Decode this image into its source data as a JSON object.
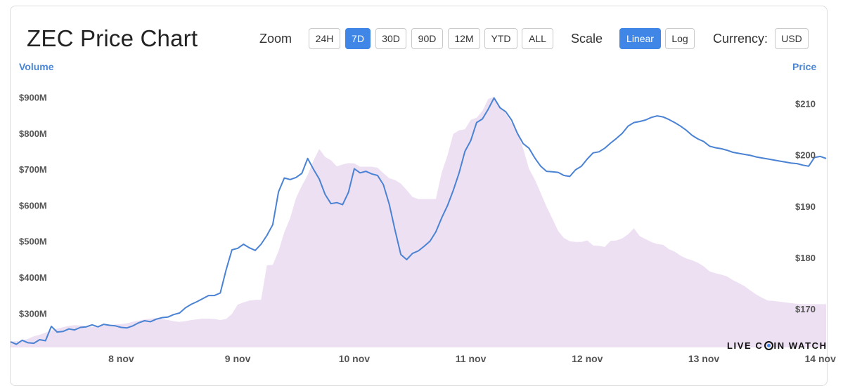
{
  "header": {
    "title": "ZEC Price Chart",
    "zoom_label": "Zoom",
    "zoom_options": [
      "24H",
      "7D",
      "30D",
      "90D",
      "12M",
      "YTD",
      "ALL"
    ],
    "zoom_selected": "7D",
    "scale_label": "Scale",
    "scale_options": [
      "Linear",
      "Log"
    ],
    "scale_selected": "Linear",
    "currency_label": "Currency:",
    "currency_value": "USD"
  },
  "watermark": {
    "before": "LIVE C",
    "after": "IN WATCH"
  },
  "colors": {
    "price_line": "#4a82d4",
    "volume_fill": "#ede0f2",
    "accent": "#3f86e6",
    "axis_title": "#4a86d4"
  },
  "chart_data": {
    "type": "line",
    "title": "ZEC Price Chart",
    "x_axis": {
      "ticks": [
        "8 nov",
        "9 nov",
        "10 nov",
        "11 nov",
        "12 nov",
        "13 nov",
        "14 nov"
      ],
      "range_days": [
        7.55,
        14.55
      ]
    },
    "left_axis": {
      "label": "Volume",
      "ticks": [
        300,
        400,
        500,
        600,
        700,
        800,
        900
      ],
      "tick_labels": [
        "$300M",
        "$400M",
        "$500M",
        "$600M",
        "$700M",
        "$800M",
        "$900M"
      ],
      "unit": "USD millions",
      "range": [
        205,
        975
      ]
    },
    "right_axis": {
      "label": "Price",
      "ticks": [
        170,
        180,
        190,
        200,
        210
      ],
      "tick_labels": [
        "$170",
        "$180",
        "$190",
        "$200",
        "$210"
      ],
      "unit": "USD",
      "range": [
        162.5,
        216.5
      ]
    },
    "series": [
      {
        "name": "Price",
        "axis": "right",
        "points": [
          [
            7.55,
            163.6
          ],
          [
            7.6,
            163.1
          ],
          [
            7.65,
            163.9
          ],
          [
            7.7,
            163.4
          ],
          [
            7.75,
            163.3
          ],
          [
            7.8,
            164.0
          ],
          [
            7.85,
            163.8
          ],
          [
            7.9,
            166.6
          ],
          [
            7.95,
            165.5
          ],
          [
            8.0,
            165.6
          ],
          [
            8.05,
            166.1
          ],
          [
            8.1,
            165.9
          ],
          [
            8.15,
            166.4
          ],
          [
            8.2,
            166.5
          ],
          [
            8.25,
            166.9
          ],
          [
            8.3,
            166.5
          ],
          [
            8.35,
            167.0
          ],
          [
            8.4,
            166.8
          ],
          [
            8.45,
            166.7
          ],
          [
            8.5,
            166.4
          ],
          [
            8.55,
            166.3
          ],
          [
            8.6,
            166.7
          ],
          [
            8.65,
            167.3
          ],
          [
            8.7,
            167.7
          ],
          [
            8.75,
            167.5
          ],
          [
            8.8,
            168.0
          ],
          [
            8.85,
            168.3
          ],
          [
            8.9,
            168.4
          ],
          [
            8.95,
            168.9
          ],
          [
            9.0,
            169.2
          ],
          [
            9.05,
            170.2
          ],
          [
            9.1,
            170.9
          ],
          [
            9.15,
            171.4
          ],
          [
            9.2,
            172.0
          ],
          [
            9.25,
            172.6
          ],
          [
            9.3,
            172.6
          ],
          [
            9.35,
            173.1
          ],
          [
            9.4,
            177.6
          ],
          [
            9.45,
            181.5
          ],
          [
            9.5,
            181.8
          ],
          [
            9.55,
            182.6
          ],
          [
            9.6,
            181.9
          ],
          [
            9.65,
            181.4
          ],
          [
            9.7,
            182.6
          ],
          [
            9.75,
            184.3
          ],
          [
            9.8,
            186.4
          ],
          [
            9.85,
            192.8
          ],
          [
            9.9,
            195.5
          ],
          [
            9.95,
            195.2
          ],
          [
            10.0,
            195.6
          ],
          [
            10.05,
            196.4
          ],
          [
            10.1,
            199.3
          ],
          [
            10.15,
            197.2
          ],
          [
            10.2,
            195.3
          ],
          [
            10.25,
            192.3
          ],
          [
            10.3,
            190.5
          ],
          [
            10.35,
            190.7
          ],
          [
            10.4,
            190.3
          ],
          [
            10.45,
            192.7
          ],
          [
            10.5,
            197.3
          ],
          [
            10.55,
            196.5
          ],
          [
            10.6,
            196.8
          ],
          [
            10.65,
            196.3
          ],
          [
            10.7,
            196.0
          ],
          [
            10.75,
            194.2
          ],
          [
            10.8,
            190.4
          ],
          [
            10.85,
            185.3
          ],
          [
            10.9,
            180.6
          ],
          [
            10.95,
            179.6
          ],
          [
            11.0,
            180.8
          ],
          [
            11.05,
            181.3
          ],
          [
            11.1,
            182.2
          ],
          [
            11.15,
            183.2
          ],
          [
            11.2,
            185.0
          ],
          [
            11.25,
            187.7
          ],
          [
            11.3,
            190.1
          ],
          [
            11.35,
            193.1
          ],
          [
            11.4,
            196.5
          ],
          [
            11.45,
            200.7
          ],
          [
            11.5,
            202.8
          ],
          [
            11.55,
            206.3
          ],
          [
            11.6,
            207.0
          ],
          [
            11.65,
            208.9
          ],
          [
            11.7,
            211.1
          ],
          [
            11.75,
            209.2
          ],
          [
            11.8,
            208.4
          ],
          [
            11.85,
            206.8
          ],
          [
            11.9,
            204.2
          ],
          [
            11.95,
            202.2
          ],
          [
            12.0,
            201.3
          ],
          [
            12.05,
            199.4
          ],
          [
            12.1,
            197.8
          ],
          [
            12.15,
            196.8
          ],
          [
            12.2,
            196.7
          ],
          [
            12.25,
            196.6
          ],
          [
            12.3,
            196.0
          ],
          [
            12.35,
            195.8
          ],
          [
            12.4,
            197.1
          ],
          [
            12.45,
            197.8
          ],
          [
            12.5,
            199.2
          ],
          [
            12.55,
            200.4
          ],
          [
            12.6,
            200.6
          ],
          [
            12.65,
            201.3
          ],
          [
            12.7,
            202.3
          ],
          [
            12.75,
            203.2
          ],
          [
            12.8,
            204.2
          ],
          [
            12.85,
            205.6
          ],
          [
            12.9,
            206.3
          ],
          [
            12.95,
            206.5
          ],
          [
            13.0,
            206.8
          ],
          [
            13.05,
            207.3
          ],
          [
            13.1,
            207.6
          ],
          [
            13.15,
            207.4
          ],
          [
            13.2,
            206.9
          ],
          [
            13.25,
            206.3
          ],
          [
            13.3,
            205.6
          ],
          [
            13.35,
            204.8
          ],
          [
            13.4,
            203.8
          ],
          [
            13.45,
            203.1
          ],
          [
            13.5,
            202.6
          ],
          [
            13.55,
            201.7
          ],
          [
            13.6,
            201.4
          ],
          [
            13.65,
            201.2
          ],
          [
            13.7,
            200.9
          ],
          [
            13.75,
            200.5
          ],
          [
            13.8,
            200.3
          ],
          [
            13.85,
            200.1
          ],
          [
            13.9,
            199.9
          ],
          [
            13.95,
            199.6
          ],
          [
            14.0,
            199.4
          ],
          [
            14.05,
            199.2
          ],
          [
            14.1,
            199.0
          ],
          [
            14.15,
            198.8
          ],
          [
            14.2,
            198.6
          ],
          [
            14.25,
            198.4
          ],
          [
            14.3,
            198.3
          ],
          [
            14.35,
            198.0
          ],
          [
            14.4,
            197.8
          ],
          [
            14.45,
            199.5
          ],
          [
            14.5,
            199.7
          ],
          [
            14.55,
            199.3
          ]
        ]
      },
      {
        "name": "Volume",
        "axis": "left",
        "points": [
          [
            7.55,
            222
          ],
          [
            7.6,
            222
          ],
          [
            7.65,
            224
          ],
          [
            7.7,
            229
          ],
          [
            7.75,
            236
          ],
          [
            7.8,
            240
          ],
          [
            7.85,
            246
          ],
          [
            7.9,
            252
          ],
          [
            7.95,
            257
          ],
          [
            8.0,
            261
          ],
          [
            8.05,
            265
          ],
          [
            8.1,
            267
          ],
          [
            8.15,
            266
          ],
          [
            8.2,
            264
          ],
          [
            8.25,
            262
          ],
          [
            8.3,
            264
          ],
          [
            8.35,
            266
          ],
          [
            8.4,
            267
          ],
          [
            8.45,
            269
          ],
          [
            8.5,
            270
          ],
          [
            8.55,
            272
          ],
          [
            8.6,
            276
          ],
          [
            8.65,
            279
          ],
          [
            8.7,
            283
          ],
          [
            8.75,
            285
          ],
          [
            8.8,
            286
          ],
          [
            8.85,
            284
          ],
          [
            8.9,
            281
          ],
          [
            8.95,
            278
          ],
          [
            9.0,
            276
          ],
          [
            9.05,
            278
          ],
          [
            9.1,
            281
          ],
          [
            9.15,
            283
          ],
          [
            9.2,
            285
          ],
          [
            9.25,
            285
          ],
          [
            9.3,
            284
          ],
          [
            9.35,
            281
          ],
          [
            9.4,
            284
          ],
          [
            9.45,
            298
          ],
          [
            9.5,
            324
          ],
          [
            9.55,
            330
          ],
          [
            9.6,
            335
          ],
          [
            9.65,
            337
          ],
          [
            9.7,
            337
          ],
          [
            9.75,
            433
          ],
          [
            9.8,
            434
          ],
          [
            9.85,
            472
          ],
          [
            9.9,
            525
          ],
          [
            9.95,
            564
          ],
          [
            10.0,
            620
          ],
          [
            10.05,
            654
          ],
          [
            10.1,
            684
          ],
          [
            10.15,
            724
          ],
          [
            10.2,
            756
          ],
          [
            10.25,
            734
          ],
          [
            10.3,
            725
          ],
          [
            10.35,
            708
          ],
          [
            10.4,
            713
          ],
          [
            10.45,
            717
          ],
          [
            10.5,
            716
          ],
          [
            10.55,
            707
          ],
          [
            10.6,
            707
          ],
          [
            10.65,
            707
          ],
          [
            10.7,
            704
          ],
          [
            10.75,
            689
          ],
          [
            10.8,
            675
          ],
          [
            10.85,
            670
          ],
          [
            10.9,
            660
          ],
          [
            10.95,
            642
          ],
          [
            11.0,
            623
          ],
          [
            11.05,
            617
          ],
          [
            11.1,
            617
          ],
          [
            11.15,
            617
          ],
          [
            11.2,
            617
          ],
          [
            11.25,
            690
          ],
          [
            11.3,
            738
          ],
          [
            11.35,
            798
          ],
          [
            11.4,
            808
          ],
          [
            11.45,
            811
          ],
          [
            11.5,
            837
          ],
          [
            11.55,
            843
          ],
          [
            11.6,
            862
          ],
          [
            11.65,
            895
          ],
          [
            11.7,
            901
          ],
          [
            11.75,
            877
          ],
          [
            11.8,
            854
          ],
          [
            11.85,
            830
          ],
          [
            11.9,
            802
          ],
          [
            11.95,
            757
          ],
          [
            12.0,
            701
          ],
          [
            12.05,
            671
          ],
          [
            12.1,
            634
          ],
          [
            12.15,
            596
          ],
          [
            12.2,
            563
          ],
          [
            12.25,
            528
          ],
          [
            12.3,
            509
          ],
          [
            12.35,
            500
          ],
          [
            12.4,
            498
          ],
          [
            12.45,
            498
          ],
          [
            12.5,
            502
          ],
          [
            12.55,
            488
          ],
          [
            12.6,
            487
          ],
          [
            12.65,
            484
          ],
          [
            12.7,
            501
          ],
          [
            12.75,
            502
          ],
          [
            12.8,
            508
          ],
          [
            12.85,
            519
          ],
          [
            12.9,
            536
          ],
          [
            12.95,
            514
          ],
          [
            13.0,
            506
          ],
          [
            13.05,
            498
          ],
          [
            13.1,
            492
          ],
          [
            13.15,
            490
          ],
          [
            13.2,
            478
          ],
          [
            13.25,
            471
          ],
          [
            13.3,
            460
          ],
          [
            13.35,
            452
          ],
          [
            13.4,
            447
          ],
          [
            13.45,
            440
          ],
          [
            13.5,
            430
          ],
          [
            13.55,
            416
          ],
          [
            13.6,
            411
          ],
          [
            13.65,
            407
          ],
          [
            13.7,
            402
          ],
          [
            13.75,
            392
          ],
          [
            13.8,
            384
          ],
          [
            13.85,
            375
          ],
          [
            13.9,
            363
          ],
          [
            13.95,
            352
          ],
          [
            14.0,
            343
          ],
          [
            14.05,
            335
          ],
          [
            14.1,
            334
          ],
          [
            14.15,
            332
          ],
          [
            14.2,
            330
          ],
          [
            14.25,
            328
          ],
          [
            14.3,
            326
          ],
          [
            14.35,
            325
          ],
          [
            14.4,
            325
          ],
          [
            14.45,
            325
          ],
          [
            14.5,
            325
          ],
          [
            14.55,
            325
          ]
        ]
      }
    ],
    "grid": false,
    "legend": "none"
  }
}
